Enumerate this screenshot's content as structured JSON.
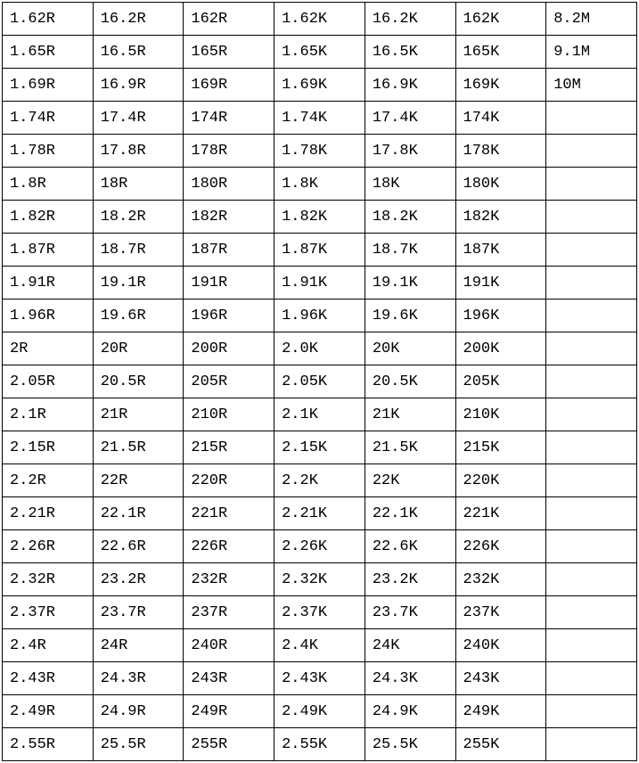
{
  "table": {
    "background_color": "#ffffff",
    "border_color": "#000000",
    "text_color": "#000000",
    "font_family": "Courier New, SimSun, monospace",
    "font_size": 17,
    "cell_padding": "6px 8px",
    "columns": 7,
    "column_widths_pct": [
      14.3,
      14.3,
      14.3,
      14.3,
      14.3,
      14.3,
      14.2
    ],
    "rows": [
      [
        "1.62R",
        "16.2R",
        "162R",
        "1.62K",
        "16.2K",
        "162K",
        "8.2M"
      ],
      [
        "1.65R",
        "16.5R",
        "165R",
        "1.65K",
        "16.5K",
        "165K",
        "9.1M"
      ],
      [
        "1.69R",
        "16.9R",
        "169R",
        "1.69K",
        "16.9K",
        "169K",
        "10M"
      ],
      [
        "1.74R",
        "17.4R",
        "174R",
        "1.74K",
        "17.4K",
        "174K",
        ""
      ],
      [
        "1.78R",
        "17.8R",
        "178R",
        "1.78K",
        "17.8K",
        "178K",
        ""
      ],
      [
        "1.8R",
        "18R",
        "180R",
        "1.8K",
        "18K",
        "180K",
        ""
      ],
      [
        "1.82R",
        "18.2R",
        "182R",
        "1.82K",
        "18.2K",
        "182K",
        ""
      ],
      [
        "1.87R",
        "18.7R",
        "187R",
        "1.87K",
        "18.7K",
        "187K",
        ""
      ],
      [
        "1.91R",
        "19.1R",
        "191R",
        "1.91K",
        "19.1K",
        "191K",
        ""
      ],
      [
        "1.96R",
        "19.6R",
        "196R",
        "1.96K",
        "19.6K",
        "196K",
        ""
      ],
      [
        "2R",
        "20R",
        "200R",
        "2.0K",
        "20K",
        "200K",
        ""
      ],
      [
        "2.05R",
        "20.5R",
        "205R",
        "2.05K",
        "20.5K",
        "205K",
        ""
      ],
      [
        "2.1R",
        "21R",
        "210R",
        "2.1K",
        "21K",
        "210K",
        ""
      ],
      [
        "2.15R",
        "21.5R",
        "215R",
        "2.15K",
        "21.5K",
        "215K",
        ""
      ],
      [
        "2.2R",
        "22R",
        "220R",
        "2.2K",
        "22K",
        "220K",
        ""
      ],
      [
        "2.21R",
        "22.1R",
        "221R",
        "2.21K",
        "22.1K",
        "221K",
        ""
      ],
      [
        "2.26R",
        "22.6R",
        "226R",
        "2.26K",
        "22.6K",
        "226K",
        ""
      ],
      [
        "2.32R",
        "23.2R",
        "232R",
        "2.32K",
        "23.2K",
        "232K",
        ""
      ],
      [
        "2.37R",
        "23.7R",
        "237R",
        "2.37K",
        "23.7K",
        "237K",
        ""
      ],
      [
        "2.4R",
        "24R",
        "240R",
        "2.4K",
        "24K",
        "240K",
        ""
      ],
      [
        "2.43R",
        "24.3R",
        "243R",
        "2.43K",
        "24.3K",
        "243K",
        ""
      ],
      [
        "2.49R",
        "24.9R",
        "249R",
        "2.49K",
        "24.9K",
        "249K",
        ""
      ],
      [
        "2.55R",
        "25.5R",
        "255R",
        "2.55K",
        "25.5K",
        "255K",
        ""
      ]
    ]
  }
}
